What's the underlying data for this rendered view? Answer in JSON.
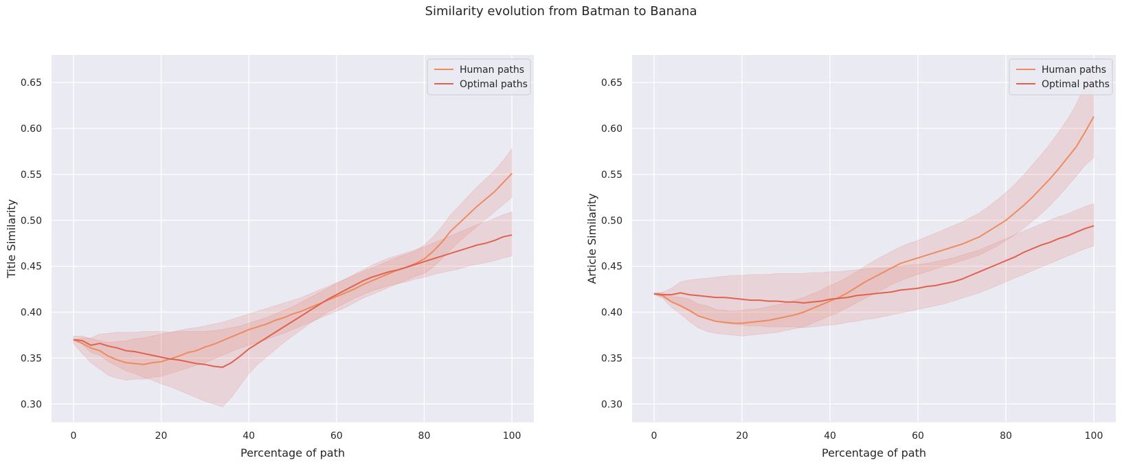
{
  "figure": {
    "suptitle": "Similarity evolution from Batman to Banana"
  },
  "colors": {
    "background": "#eaeaf2",
    "grid": "#ffffff",
    "human": "#ee8a5f",
    "optimal": "#e0614e",
    "band": "#e0614e"
  },
  "chart_data": [
    {
      "type": "line",
      "title": "",
      "xlabel": "Percentage of path",
      "ylabel": "Title Similarity",
      "xlim": [
        -5,
        105
      ],
      "ylim": [
        0.28,
        0.68
      ],
      "xticks": [
        0,
        20,
        40,
        60,
        80,
        100
      ],
      "yticks": [
        0.3,
        0.35,
        0.4,
        0.45,
        0.5,
        0.55,
        0.6,
        0.65
      ],
      "grid": true,
      "legend": "top-right",
      "series": [
        {
          "name": "Human paths",
          "color": "#ee8a5f",
          "x": [
            0,
            2,
            4,
            6,
            8,
            10,
            12,
            14,
            16,
            18,
            20,
            22,
            24,
            26,
            28,
            30,
            32,
            34,
            36,
            38,
            40,
            42,
            44,
            46,
            48,
            50,
            52,
            54,
            56,
            58,
            60,
            62,
            64,
            66,
            68,
            70,
            72,
            74,
            76,
            78,
            80,
            82,
            84,
            86,
            88,
            90,
            92,
            94,
            96,
            98,
            100
          ],
          "y": [
            0.37,
            0.366,
            0.361,
            0.358,
            0.352,
            0.348,
            0.345,
            0.344,
            0.343,
            0.345,
            0.346,
            0.349,
            0.352,
            0.356,
            0.358,
            0.362,
            0.365,
            0.369,
            0.373,
            0.377,
            0.381,
            0.384,
            0.387,
            0.391,
            0.394,
            0.398,
            0.401,
            0.405,
            0.409,
            0.413,
            0.417,
            0.421,
            0.425,
            0.43,
            0.434,
            0.438,
            0.442,
            0.446,
            0.449,
            0.453,
            0.458,
            0.466,
            0.476,
            0.488,
            0.497,
            0.506,
            0.515,
            0.523,
            0.531,
            0.541,
            0.551
          ],
          "lower": [
            0.366,
            0.355,
            0.345,
            0.338,
            0.331,
            0.328,
            0.326,
            0.327,
            0.327,
            0.329,
            0.33,
            0.333,
            0.336,
            0.339,
            0.342,
            0.345,
            0.349,
            0.353,
            0.357,
            0.361,
            0.364,
            0.367,
            0.37,
            0.374,
            0.377,
            0.381,
            0.385,
            0.389,
            0.393,
            0.397,
            0.401,
            0.405,
            0.41,
            0.415,
            0.419,
            0.423,
            0.427,
            0.431,
            0.435,
            0.439,
            0.442,
            0.449,
            0.458,
            0.468,
            0.477,
            0.485,
            0.493,
            0.501,
            0.509,
            0.517,
            0.525
          ],
          "upper": [
            0.374,
            0.374,
            0.371,
            0.369,
            0.367,
            0.368,
            0.369,
            0.371,
            0.372,
            0.374,
            0.376,
            0.378,
            0.38,
            0.382,
            0.383,
            0.385,
            0.387,
            0.389,
            0.392,
            0.395,
            0.398,
            0.401,
            0.404,
            0.407,
            0.41,
            0.413,
            0.416,
            0.42,
            0.424,
            0.428,
            0.432,
            0.436,
            0.44,
            0.444,
            0.448,
            0.452,
            0.456,
            0.46,
            0.463,
            0.467,
            0.473,
            0.482,
            0.493,
            0.506,
            0.516,
            0.526,
            0.536,
            0.545,
            0.554,
            0.565,
            0.578
          ]
        },
        {
          "name": "Optimal paths",
          "color": "#e0614e",
          "x": [
            0,
            2,
            4,
            6,
            8,
            10,
            12,
            14,
            16,
            18,
            20,
            22,
            24,
            26,
            28,
            30,
            32,
            34,
            36,
            38,
            40,
            42,
            44,
            46,
            48,
            50,
            52,
            54,
            56,
            58,
            60,
            62,
            64,
            66,
            68,
            70,
            72,
            74,
            76,
            78,
            80,
            82,
            84,
            86,
            88,
            90,
            92,
            94,
            96,
            98,
            100
          ],
          "y": [
            0.37,
            0.369,
            0.364,
            0.366,
            0.363,
            0.361,
            0.358,
            0.357,
            0.355,
            0.353,
            0.351,
            0.349,
            0.348,
            0.346,
            0.344,
            0.343,
            0.341,
            0.34,
            0.345,
            0.352,
            0.36,
            0.366,
            0.372,
            0.378,
            0.384,
            0.39,
            0.396,
            0.402,
            0.408,
            0.414,
            0.419,
            0.424,
            0.429,
            0.434,
            0.438,
            0.441,
            0.444,
            0.446,
            0.449,
            0.452,
            0.455,
            0.458,
            0.461,
            0.464,
            0.467,
            0.47,
            0.473,
            0.475,
            0.478,
            0.482,
            0.484
          ],
          "lower": [
            0.37,
            0.365,
            0.356,
            0.353,
            0.346,
            0.341,
            0.336,
            0.333,
            0.329,
            0.326,
            0.322,
            0.319,
            0.315,
            0.311,
            0.307,
            0.303,
            0.3,
            0.297,
            0.307,
            0.32,
            0.333,
            0.343,
            0.351,
            0.359,
            0.367,
            0.374,
            0.381,
            0.388,
            0.394,
            0.4,
            0.405,
            0.41,
            0.415,
            0.419,
            0.423,
            0.426,
            0.429,
            0.431,
            0.433,
            0.436,
            0.438,
            0.441,
            0.443,
            0.445,
            0.447,
            0.45,
            0.452,
            0.454,
            0.456,
            0.459,
            0.461
          ],
          "upper": [
            0.37,
            0.372,
            0.372,
            0.376,
            0.377,
            0.378,
            0.378,
            0.378,
            0.379,
            0.379,
            0.379,
            0.378,
            0.379,
            0.379,
            0.379,
            0.379,
            0.38,
            0.381,
            0.383,
            0.385,
            0.388,
            0.391,
            0.394,
            0.398,
            0.402,
            0.406,
            0.411,
            0.416,
            0.421,
            0.426,
            0.431,
            0.436,
            0.441,
            0.446,
            0.451,
            0.455,
            0.459,
            0.462,
            0.465,
            0.468,
            0.471,
            0.475,
            0.479,
            0.483,
            0.487,
            0.491,
            0.495,
            0.498,
            0.502,
            0.506,
            0.509
          ]
        }
      ]
    },
    {
      "type": "line",
      "title": "",
      "xlabel": "Percentage of path",
      "ylabel": "Article Similarity",
      "xlim": [
        -5,
        105
      ],
      "ylim": [
        0.28,
        0.68
      ],
      "xticks": [
        0,
        20,
        40,
        60,
        80,
        100
      ],
      "yticks": [
        0.3,
        0.35,
        0.4,
        0.45,
        0.5,
        0.55,
        0.6,
        0.65
      ],
      "grid": true,
      "legend": "top-right",
      "series": [
        {
          "name": "Human paths",
          "color": "#ee8a5f",
          "x": [
            0,
            2,
            4,
            6,
            8,
            10,
            12,
            14,
            16,
            18,
            20,
            22,
            24,
            26,
            28,
            30,
            32,
            34,
            36,
            38,
            40,
            42,
            44,
            46,
            48,
            50,
            52,
            54,
            56,
            58,
            60,
            62,
            64,
            66,
            68,
            70,
            72,
            74,
            76,
            78,
            80,
            82,
            84,
            86,
            88,
            90,
            92,
            94,
            96,
            98,
            100
          ],
          "y": [
            0.42,
            0.418,
            0.411,
            0.407,
            0.402,
            0.396,
            0.393,
            0.39,
            0.389,
            0.388,
            0.388,
            0.389,
            0.39,
            0.391,
            0.393,
            0.395,
            0.397,
            0.4,
            0.404,
            0.408,
            0.412,
            0.416,
            0.421,
            0.427,
            0.433,
            0.438,
            0.443,
            0.448,
            0.453,
            0.456,
            0.459,
            0.462,
            0.465,
            0.468,
            0.471,
            0.474,
            0.478,
            0.482,
            0.488,
            0.494,
            0.5,
            0.508,
            0.516,
            0.525,
            0.535,
            0.545,
            0.556,
            0.568,
            0.58,
            0.596,
            0.613
          ],
          "lower": [
            0.419,
            0.415,
            0.405,
            0.398,
            0.39,
            0.383,
            0.379,
            0.377,
            0.376,
            0.375,
            0.374,
            0.375,
            0.376,
            0.377,
            0.378,
            0.38,
            0.382,
            0.384,
            0.388,
            0.392,
            0.396,
            0.4,
            0.405,
            0.41,
            0.415,
            0.42,
            0.425,
            0.43,
            0.434,
            0.438,
            0.441,
            0.444,
            0.447,
            0.45,
            0.453,
            0.456,
            0.459,
            0.462,
            0.467,
            0.472,
            0.478,
            0.484,
            0.491,
            0.499,
            0.507,
            0.516,
            0.526,
            0.537,
            0.548,
            0.56,
            0.568
          ],
          "upper": [
            0.421,
            0.421,
            0.417,
            0.416,
            0.414,
            0.409,
            0.407,
            0.403,
            0.402,
            0.401,
            0.402,
            0.403,
            0.404,
            0.406,
            0.408,
            0.41,
            0.413,
            0.416,
            0.42,
            0.424,
            0.429,
            0.433,
            0.438,
            0.444,
            0.45,
            0.456,
            0.461,
            0.466,
            0.471,
            0.475,
            0.478,
            0.482,
            0.486,
            0.49,
            0.494,
            0.498,
            0.503,
            0.508,
            0.515,
            0.522,
            0.53,
            0.539,
            0.549,
            0.56,
            0.571,
            0.583,
            0.596,
            0.61,
            0.626,
            0.648,
            0.672
          ]
        },
        {
          "name": "Optimal paths",
          "color": "#e0614e",
          "x": [
            0,
            2,
            4,
            6,
            8,
            10,
            12,
            14,
            16,
            18,
            20,
            22,
            24,
            26,
            28,
            30,
            32,
            34,
            36,
            38,
            40,
            42,
            44,
            46,
            48,
            50,
            52,
            54,
            56,
            58,
            60,
            62,
            64,
            66,
            68,
            70,
            72,
            74,
            76,
            78,
            80,
            82,
            84,
            86,
            88,
            90,
            92,
            94,
            96,
            98,
            100
          ],
          "y": [
            0.42,
            0.419,
            0.419,
            0.421,
            0.419,
            0.418,
            0.417,
            0.416,
            0.416,
            0.415,
            0.414,
            0.413,
            0.413,
            0.412,
            0.412,
            0.411,
            0.411,
            0.41,
            0.411,
            0.412,
            0.414,
            0.415,
            0.416,
            0.418,
            0.419,
            0.42,
            0.421,
            0.422,
            0.424,
            0.425,
            0.426,
            0.428,
            0.429,
            0.431,
            0.433,
            0.436,
            0.44,
            0.444,
            0.448,
            0.452,
            0.456,
            0.46,
            0.465,
            0.469,
            0.473,
            0.476,
            0.48,
            0.483,
            0.487,
            0.491,
            0.494
          ],
          "lower": [
            0.42,
            0.416,
            0.411,
            0.406,
            0.401,
            0.396,
            0.393,
            0.39,
            0.388,
            0.387,
            0.386,
            0.385,
            0.385,
            0.384,
            0.384,
            0.384,
            0.384,
            0.383,
            0.384,
            0.385,
            0.386,
            0.387,
            0.389,
            0.39,
            0.392,
            0.393,
            0.395,
            0.397,
            0.399,
            0.401,
            0.403,
            0.405,
            0.407,
            0.409,
            0.412,
            0.415,
            0.418,
            0.421,
            0.425,
            0.429,
            0.433,
            0.437,
            0.441,
            0.445,
            0.449,
            0.453,
            0.457,
            0.461,
            0.465,
            0.469,
            0.472
          ],
          "upper": [
            0.42,
            0.422,
            0.426,
            0.433,
            0.435,
            0.436,
            0.437,
            0.438,
            0.439,
            0.44,
            0.44,
            0.441,
            0.441,
            0.441,
            0.442,
            0.442,
            0.442,
            0.442,
            0.443,
            0.443,
            0.444,
            0.444,
            0.445,
            0.446,
            0.447,
            0.448,
            0.448,
            0.449,
            0.45,
            0.451,
            0.452,
            0.453,
            0.455,
            0.457,
            0.459,
            0.462,
            0.465,
            0.468,
            0.472,
            0.476,
            0.48,
            0.484,
            0.488,
            0.492,
            0.496,
            0.5,
            0.504,
            0.507,
            0.511,
            0.515,
            0.518
          ]
        }
      ]
    }
  ]
}
